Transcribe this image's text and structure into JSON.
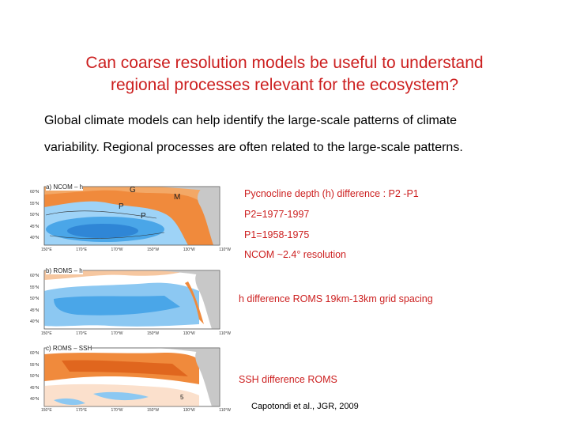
{
  "slide": {
    "title_line1": "Can coarse resolution models be useful to understand",
    "title_line2": "regional processes relevant for the ecosystem?",
    "intro_line1": "Global climate models can help identify the large-scale patterns of climate",
    "intro_line2": "variability. Regional processes are often related to the large-scale patterns."
  },
  "panels": [
    {
      "label": "a)  NCOM – h",
      "lat_ticks": [
        "60°N",
        "55°N",
        "50°N",
        "45°N",
        "40°N"
      ],
      "lon_ticks": [
        "150°E",
        "170°E",
        "170°W",
        "150°W",
        "130°W",
        "110°W"
      ],
      "markers": [
        "G",
        "M",
        "P",
        "P"
      ]
    },
    {
      "label": "b)  ROMS – h",
      "lat_ticks": [
        "60°N",
        "55°N",
        "50°N",
        "45°N",
        "40°N"
      ],
      "lon_ticks": [
        "150°E",
        "170°E",
        "170°W",
        "150°W",
        "130°W",
        "110°W"
      ],
      "markers": []
    },
    {
      "label": "c)  ROMS – SSH",
      "lat_ticks": [
        "60°N",
        "55°N",
        "50°N",
        "45°N",
        "40°N"
      ],
      "lon_ticks": [
        "150°E",
        "170°E",
        "170°W",
        "150°W",
        "130°W",
        "110°W"
      ],
      "markers": [
        "5"
      ]
    }
  ],
  "captions": {
    "panel_a_line1": "Pycnocline depth (h) difference : P2 -P1",
    "panel_a_line2": "P2=1977-1997",
    "panel_a_line3": "P1=1958-1975",
    "panel_a_line4": "NCOM ~2.4° resolution",
    "panel_b": "h difference ROMS 19km-13km grid spacing",
    "panel_c": "SSH difference ROMS"
  },
  "citation": "Capotondi et al., JGR, 2009",
  "colors": {
    "title": "#cc1f1f",
    "caption": "#cc1f1f",
    "positive": "#f08a3c",
    "negative": "#4aa6e8",
    "land": "#c8c8c8"
  }
}
